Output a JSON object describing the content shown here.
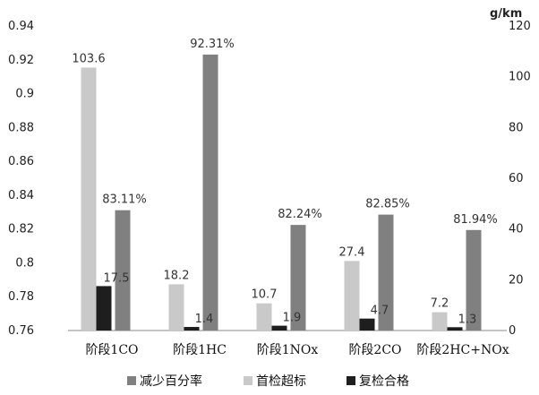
{
  "chart_data": {
    "type": "bar",
    "categories": [
      "阶段1CO",
      "阶段1HC",
      "阶段1NOx",
      "阶段2CO",
      "阶段2HC+NOx"
    ],
    "series": [
      {
        "name": "减少百分率",
        "axis": "left",
        "color": "#808080",
        "values": [
          0.8311,
          0.9231,
          0.8224,
          0.8285,
          0.8194
        ],
        "labels": [
          "83.11%",
          "92.31%",
          "82.24%",
          "82.85%",
          "81.94%"
        ]
      },
      {
        "name": "首检超标",
        "axis": "right",
        "color": "#c9c9c9",
        "values": [
          103.6,
          18.2,
          10.7,
          27.4,
          7.2
        ],
        "labels": [
          "103.6",
          "18.2",
          "10.7",
          "27.4",
          "7.2"
        ]
      },
      {
        "name": "复检合格",
        "axis": "right",
        "color": "#1e1e1e",
        "values": [
          17.5,
          1.4,
          1.9,
          4.7,
          1.3
        ],
        "labels": [
          "17.5",
          "1.4",
          "1.9",
          "4.7",
          "1.3"
        ]
      }
    ],
    "left_axis": {
      "ylim": [
        0.76,
        0.94
      ],
      "ticks": [
        "0.76",
        "0.78",
        "0.8",
        "0.82",
        "0.84",
        "0.86",
        "0.88",
        "0.9",
        "0.92",
        "0.94"
      ]
    },
    "right_axis": {
      "unit": "g/km",
      "ylim": [
        0,
        120
      ],
      "ticks": [
        "0",
        "20",
        "40",
        "60",
        "80",
        "100",
        "120"
      ]
    },
    "legend_position": "bottom",
    "grid": false
  }
}
